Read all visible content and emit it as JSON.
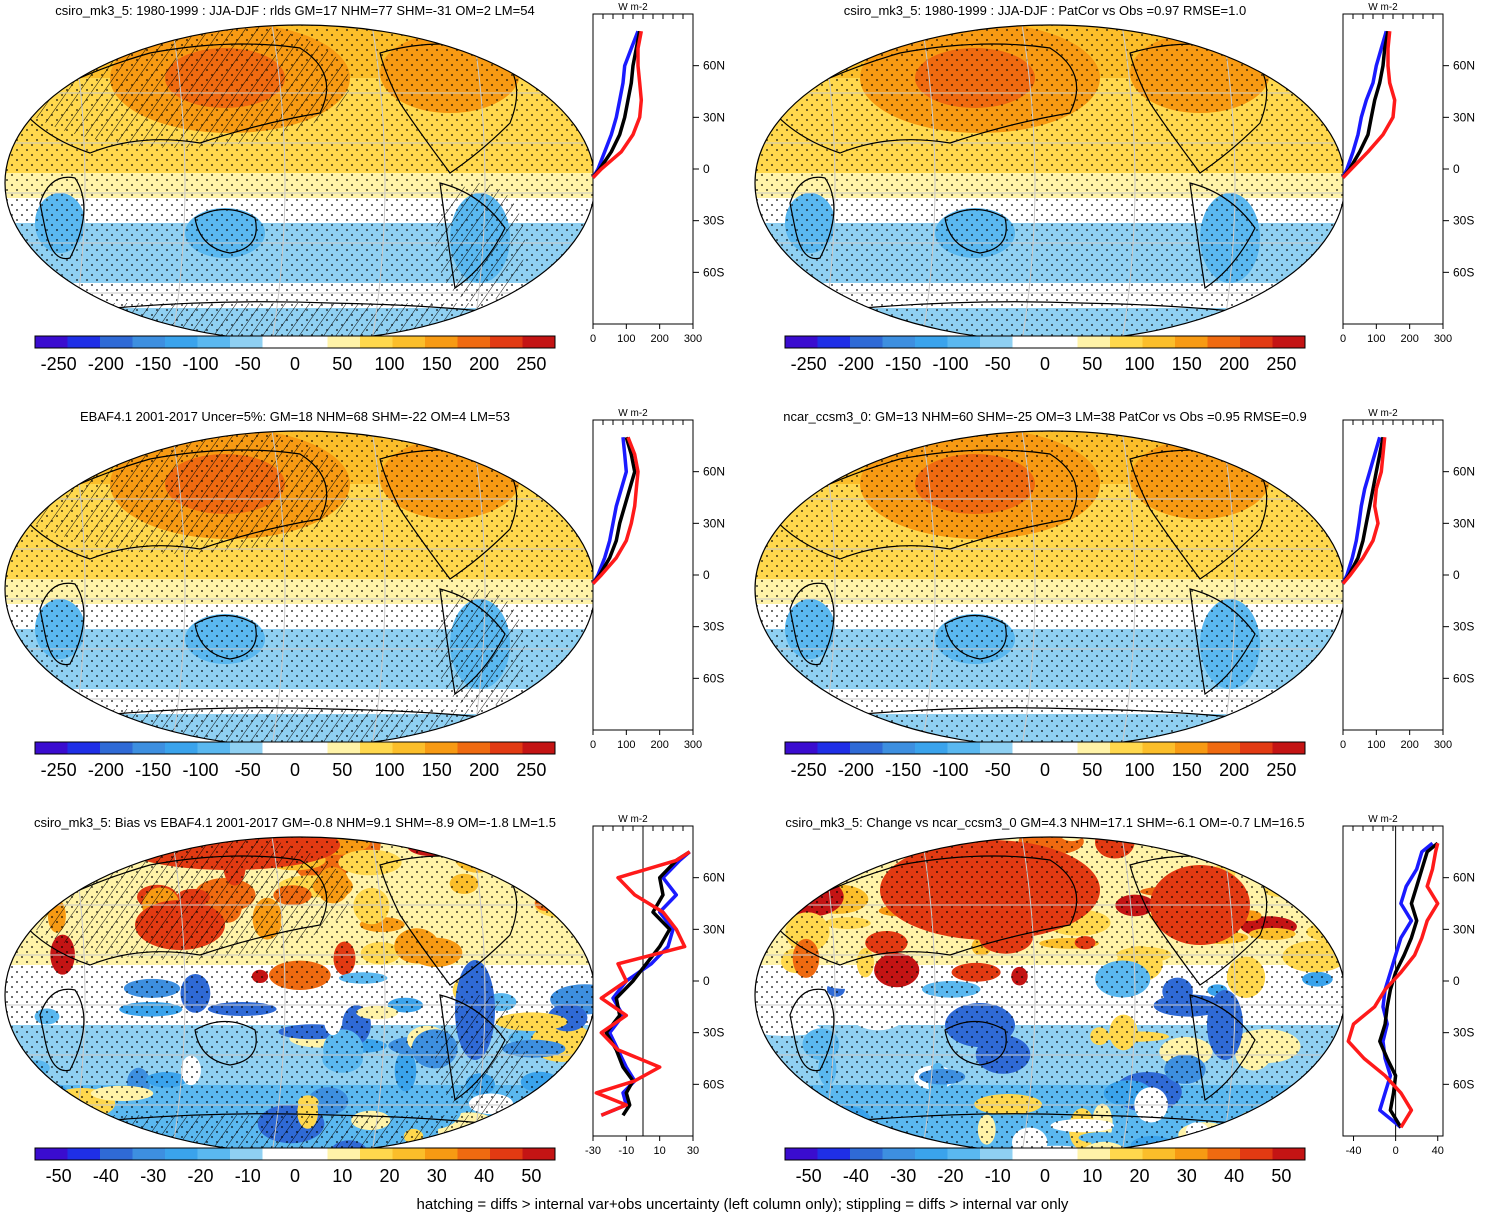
{
  "chart_data": [
    {
      "type": "heatmap",
      "id": "p1",
      "title": "csiro_mk3_5: 1980-1999 : JJA-DJF : rlds GM=17 NHM=77 SHM=-31 OM=2 LM=54",
      "overlay": "hatch",
      "colorbar": {
        "ticks": [
          "-250",
          "-200",
          "-150",
          "-100",
          "-50",
          "0",
          "50",
          "100",
          "150",
          "200",
          "250"
        ],
        "range": [
          -275,
          275
        ]
      },
      "profile": {
        "units": "W m-2",
        "x_ticks": [
          0,
          100,
          200,
          300
        ],
        "x_range": [
          0,
          300
        ],
        "lat_ticks": [
          "60N",
          "30N",
          "0",
          "30S",
          "60S"
        ],
        "lat_values": [
          60,
          30,
          0,
          -30,
          -60
        ],
        "lat_range": [
          -90,
          90
        ],
        "zero_line": false,
        "series": [
          {
            "name": "blue",
            "color": "#1a1aff",
            "lat": [
              -5,
              0,
              10,
              20,
              30,
              40,
              50,
              60,
              70,
              80
            ],
            "values": [
              0,
              15,
              35,
              55,
              70,
              80,
              90,
              95,
              115,
              135
            ]
          },
          {
            "name": "black",
            "color": "#000000",
            "lat": [
              -5,
              0,
              10,
              20,
              30,
              40,
              50,
              60,
              70,
              80
            ],
            "values": [
              0,
              20,
              55,
              80,
              95,
              105,
              115,
              120,
              130,
              140
            ]
          },
          {
            "name": "red",
            "color": "#ff1a1a",
            "lat": [
              -5,
              0,
              10,
              20,
              30,
              40,
              50,
              60,
              70,
              80
            ],
            "values": [
              0,
              25,
              85,
              120,
              140,
              145,
              140,
              135,
              135,
              145
            ]
          }
        ]
      }
    },
    {
      "type": "heatmap",
      "id": "p2",
      "title": "csiro_mk3_5: 1980-1999 : JJA-DJF : PatCor vs Obs =0.97 RMSE=1.0",
      "overlay": "none",
      "colorbar": {
        "ticks": [
          "-250",
          "-200",
          "-150",
          "-100",
          "-50",
          "0",
          "50",
          "100",
          "150",
          "200",
          "250"
        ],
        "range": [
          -275,
          275
        ]
      },
      "profile": {
        "units": "W m-2",
        "x_ticks": [
          0,
          100,
          200,
          300
        ],
        "x_range": [
          0,
          300
        ],
        "lat_ticks": [
          "60N",
          "30N",
          "0",
          "30S",
          "60S"
        ],
        "lat_values": [
          60,
          30,
          0,
          -30,
          -60
        ],
        "lat_range": [
          -90,
          90
        ],
        "zero_line": false,
        "series": [
          {
            "name": "blue",
            "color": "#1a1aff",
            "lat": [
              -5,
              0,
              10,
              20,
              30,
              40,
              50,
              60,
              70,
              80
            ],
            "values": [
              0,
              12,
              30,
              45,
              55,
              70,
              90,
              100,
              115,
              130
            ]
          },
          {
            "name": "black",
            "color": "#000000",
            "lat": [
              -5,
              0,
              10,
              20,
              30,
              40,
              50,
              60,
              70,
              80
            ],
            "values": [
              0,
              20,
              50,
              75,
              85,
              95,
              110,
              120,
              125,
              135
            ]
          },
          {
            "name": "red",
            "color": "#ff1a1a",
            "lat": [
              -5,
              0,
              10,
              20,
              30,
              40,
              50,
              60,
              70,
              80
            ],
            "values": [
              0,
              25,
              75,
              120,
              150,
              155,
              140,
              135,
              135,
              140
            ]
          }
        ]
      }
    },
    {
      "type": "heatmap",
      "id": "p3",
      "title": "EBAF4.1 2001-2017 Uncer=5%: GM=18 NHM=68 SHM=-22 OM=4 LM=53",
      "overlay": "hatch",
      "colorbar": {
        "ticks": [
          "-250",
          "-200",
          "-150",
          "-100",
          "-50",
          "0",
          "50",
          "100",
          "150",
          "200",
          "250"
        ],
        "range": [
          -275,
          275
        ]
      },
      "profile": {
        "units": "W m-2",
        "x_ticks": [
          0,
          100,
          200,
          300
        ],
        "x_range": [
          0,
          300
        ],
        "lat_ticks": [
          "60N",
          "30N",
          "0",
          "30S",
          "60S"
        ],
        "lat_values": [
          60,
          30,
          0,
          -30,
          -60
        ],
        "lat_range": [
          -90,
          90
        ],
        "zero_line": false,
        "series": [
          {
            "name": "blue",
            "color": "#1a1aff",
            "lat": [
              -5,
              0,
              10,
              20,
              30,
              40,
              50,
              60,
              70,
              80
            ],
            "values": [
              0,
              15,
              35,
              50,
              60,
              70,
              85,
              100,
              95,
              90
            ]
          },
          {
            "name": "black",
            "color": "#000000",
            "lat": [
              -5,
              0,
              10,
              20,
              30,
              40,
              50,
              60,
              70,
              80
            ],
            "values": [
              0,
              20,
              50,
              70,
              80,
              95,
              110,
              125,
              115,
              100
            ]
          },
          {
            "name": "red",
            "color": "#ff1a1a",
            "lat": [
              -5,
              0,
              10,
              20,
              30,
              40,
              50,
              60,
              70,
              80
            ],
            "values": [
              0,
              25,
              70,
              100,
              115,
              125,
              130,
              135,
              125,
              105
            ]
          }
        ]
      }
    },
    {
      "type": "heatmap",
      "id": "p4",
      "title": "ncar_ccsm3_0: GM=13 NHM=60 SHM=-25 OM=3 LM=38 PatCor vs Obs =0.95 RMSE=0.9",
      "overlay": "none",
      "colorbar": {
        "ticks": [
          "-250",
          "-200",
          "-150",
          "-100",
          "-50",
          "0",
          "50",
          "100",
          "150",
          "200",
          "250"
        ],
        "range": [
          -275,
          275
        ]
      },
      "profile": {
        "units": "W m-2",
        "x_ticks": [
          0,
          100,
          200,
          300
        ],
        "x_range": [
          0,
          300
        ],
        "lat_ticks": [
          "60N",
          "30N",
          "0",
          "30S",
          "60S"
        ],
        "lat_values": [
          60,
          30,
          0,
          -30,
          -60
        ],
        "lat_range": [
          -90,
          90
        ],
        "zero_line": false,
        "series": [
          {
            "name": "blue",
            "color": "#1a1aff",
            "lat": [
              -5,
              0,
              10,
              20,
              30,
              40,
              50,
              60,
              70,
              80
            ],
            "values": [
              0,
              12,
              28,
              40,
              48,
              55,
              65,
              80,
              95,
              110
            ]
          },
          {
            "name": "black",
            "color": "#000000",
            "lat": [
              -5,
              0,
              10,
              20,
              30,
              40,
              50,
              60,
              70,
              80
            ],
            "values": [
              0,
              18,
              45,
              60,
              70,
              80,
              90,
              100,
              110,
              120
            ]
          },
          {
            "name": "red",
            "color": "#ff1a1a",
            "lat": [
              -5,
              0,
              10,
              20,
              30,
              40,
              50,
              60,
              70,
              80
            ],
            "values": [
              0,
              22,
              60,
              90,
              105,
              95,
              100,
              115,
              120,
              125
            ]
          }
        ]
      }
    },
    {
      "type": "heatmap",
      "id": "p5",
      "title": "csiro_mk3_5: Bias vs EBAF4.1 2001-2017 GM=-0.8 NHM=9.1 SHM=-8.9 OM=-1.8 LM=1.5",
      "overlay": "hatch",
      "colorbar": {
        "ticks": [
          "-50",
          "-40",
          "-30",
          "-20",
          "-10",
          "0",
          "10",
          "20",
          "30",
          "40",
          "50"
        ],
        "range": [
          -55,
          55
        ]
      },
      "profile": {
        "units": "W m-2",
        "x_ticks": [
          -30,
          -10,
          10,
          30
        ],
        "x_range": [
          -30,
          30
        ],
        "lat_ticks": [
          "60N",
          "30N",
          "0",
          "30S",
          "60S"
        ],
        "lat_values": [
          60,
          30,
          0,
          -30,
          -60
        ],
        "lat_range": [
          -90,
          90
        ],
        "zero_line": true,
        "series": [
          {
            "name": "blue",
            "color": "#1a1aff",
            "lat": [
              -78,
              -72,
              -65,
              -58,
              -50,
              -40,
              -30,
              -20,
              -10,
              0,
              10,
              20,
              30,
              40,
              50,
              60,
              70,
              75
            ],
            "values": [
              -25,
              -10,
              -12,
              -5,
              -10,
              -15,
              -20,
              -12,
              -18,
              -10,
              5,
              15,
              18,
              10,
              20,
              12,
              22,
              28
            ]
          },
          {
            "name": "black",
            "color": "#000000",
            "lat": [
              -78,
              -72,
              -65,
              -58,
              -50,
              -40,
              -30,
              -20,
              -10,
              0,
              10,
              20,
              30,
              40,
              50,
              60,
              70,
              75
            ],
            "values": [
              -12,
              -8,
              -10,
              -6,
              -12,
              -16,
              -22,
              -14,
              -16,
              -6,
              2,
              10,
              16,
              6,
              12,
              10,
              20,
              28
            ]
          },
          {
            "name": "red",
            "color": "#ff1a1a",
            "lat": [
              -78,
              -72,
              -65,
              -58,
              -50,
              -40,
              -30,
              -20,
              -10,
              0,
              10,
              20,
              30,
              40,
              50,
              60,
              70,
              75
            ],
            "values": [
              -25,
              -10,
              -28,
              -5,
              10,
              -15,
              -25,
              -10,
              -25,
              -10,
              -15,
              25,
              20,
              12,
              -5,
              -15,
              20,
              28
            ]
          }
        ]
      }
    },
    {
      "type": "heatmap",
      "id": "p6",
      "title": "csiro_mk3_5: Change vs ncar_ccsm3_0 GM=4.3 NHM=17.1 SHM=-6.1 OM=-0.7 LM=16.5",
      "overlay": "none",
      "colorbar": {
        "ticks": [
          "-50",
          "-40",
          "-30",
          "-20",
          "-10",
          "0",
          "10",
          "20",
          "30",
          "40",
          "50"
        ],
        "range": [
          -55,
          55
        ]
      },
      "profile": {
        "units": "W m-2",
        "x_ticks": [
          -40,
          0,
          40
        ],
        "x_range": [
          -50,
          45
        ],
        "lat_ticks": [
          "60N",
          "30N",
          "0",
          "30S",
          "60S"
        ],
        "lat_values": [
          60,
          30,
          0,
          -30,
          -60
        ],
        "lat_range": [
          -90,
          90
        ],
        "zero_line": true,
        "series": [
          {
            "name": "blue",
            "color": "#1a1aff",
            "lat": [
              -85,
              -75,
              -65,
              -55,
              -45,
              -35,
              -25,
              -15,
              -5,
              5,
              15,
              25,
              35,
              45,
              55,
              65,
              75,
              80
            ],
            "values": [
              5,
              -15,
              -10,
              -5,
              -10,
              -12,
              -8,
              -12,
              -10,
              -5,
              0,
              5,
              15,
              5,
              10,
              20,
              25,
              35
            ]
          },
          {
            "name": "black",
            "color": "#000000",
            "lat": [
              -85,
              -75,
              -65,
              -55,
              -45,
              -35,
              -25,
              -15,
              -5,
              5,
              15,
              25,
              35,
              45,
              55,
              65,
              75,
              80
            ],
            "values": [
              5,
              -5,
              -2,
              0,
              -8,
              -15,
              -10,
              -8,
              -5,
              0,
              8,
              15,
              20,
              15,
              20,
              25,
              30,
              40
            ]
          },
          {
            "name": "red",
            "color": "#ff1a1a",
            "lat": [
              -85,
              -75,
              -65,
              -55,
              -45,
              -35,
              -25,
              -15,
              -5,
              5,
              15,
              25,
              35,
              45,
              55,
              65,
              75,
              80
            ],
            "values": [
              5,
              15,
              5,
              -10,
              -30,
              -45,
              -40,
              -20,
              -10,
              5,
              18,
              25,
              30,
              40,
              30,
              35,
              38,
              40
            ]
          }
        ]
      }
    }
  ],
  "footer": "hatching = diffs > internal var+obs uncertainty (left column only); stippling = diffs > internal var only",
  "colors": {
    "palette": [
      "#3a0ccf",
      "#1f2fe6",
      "#2f6ad6",
      "#3d8fe0",
      "#3aa3ec",
      "#5ab8f0",
      "#8fd0f2",
      "#ffffff",
      "#ffffff",
      "#fff3a8",
      "#ffd84d",
      "#fbbe2a",
      "#f79a13",
      "#ef6a10",
      "#e23a12",
      "#c41414"
    ],
    "land": "#000000",
    "grid": "#c8c8c8"
  }
}
